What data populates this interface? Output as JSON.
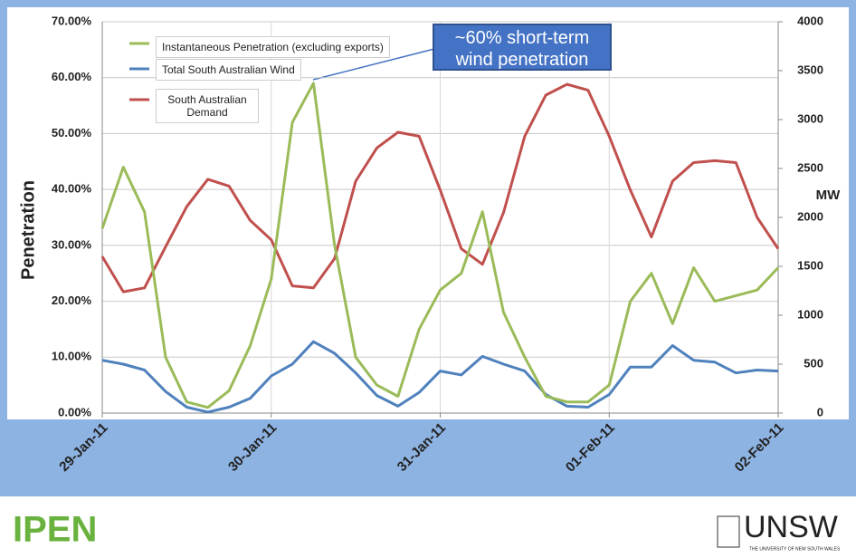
{
  "chart_data": {
    "type": "line",
    "ylabel": "Penetration",
    "y2label": "MW",
    "annotation": "~60% short-term wind penetration",
    "x": [
      0,
      0.125,
      0.25,
      0.375,
      0.5,
      0.625,
      0.75,
      0.875,
      1,
      1.125,
      1.25,
      1.375,
      1.5,
      1.625,
      1.75,
      1.875,
      2,
      2.125,
      2.25,
      2.375,
      2.5,
      2.625,
      2.75,
      2.875,
      3,
      3.125,
      3.25,
      3.375,
      3.5,
      3.625,
      3.75,
      3.875,
      4
    ],
    "xlim": [
      0,
      4
    ],
    "xticks": [
      {
        "value": 0,
        "label": "29-Jan-11"
      },
      {
        "value": 1,
        "label": "30-Jan-11"
      },
      {
        "value": 2,
        "label": "31-Jan-11"
      },
      {
        "value": 3,
        "label": "01-Feb-11"
      },
      {
        "value": 4,
        "label": "02-Feb-11"
      }
    ],
    "ylim": [
      0,
      70
    ],
    "yticks": [
      {
        "value": 0,
        "label": "0.00%"
      },
      {
        "value": 10,
        "label": "10.00%"
      },
      {
        "value": 20,
        "label": "20.00%"
      },
      {
        "value": 30,
        "label": "30.00%"
      },
      {
        "value": 40,
        "label": "40.00%"
      },
      {
        "value": 50,
        "label": "50.00%"
      },
      {
        "value": 60,
        "label": "60.00%"
      },
      {
        "value": 70,
        "label": "70.00%"
      }
    ],
    "y2lim": [
      0,
      4000
    ],
    "y2ticks": [
      0,
      500,
      1000,
      1500,
      2000,
      2500,
      3000,
      3500,
      4000
    ],
    "grid": true,
    "series": [
      {
        "name": "Instantaneous Penetration (excluding exports)",
        "color": "#9bbb59",
        "axis": "y",
        "values": [
          33,
          44,
          36,
          10,
          2,
          1,
          4,
          12,
          24,
          52,
          59,
          30,
          10,
          5,
          3,
          15,
          22,
          25,
          36,
          18,
          10,
          3,
          2,
          2,
          5,
          20,
          25,
          16,
          26,
          20,
          21,
          22,
          26
        ]
      },
      {
        "name": "Total South Australian Wind",
        "color": "#4f81bd",
        "axis": "y2",
        "values": [
          540,
          500,
          440,
          220,
          60,
          10,
          60,
          150,
          380,
          500,
          730,
          610,
          410,
          180,
          70,
          210,
          430,
          390,
          580,
          500,
          430,
          190,
          70,
          60,
          190,
          470,
          470,
          690,
          540,
          520,
          410,
          440,
          430
        ]
      },
      {
        "name": "South Australian Demand",
        "color": "#c0504d",
        "axis": "y2",
        "values": [
          1600,
          1240,
          1280,
          1700,
          2110,
          2390,
          2320,
          1970,
          1770,
          1300,
          1280,
          1580,
          2370,
          2710,
          2870,
          2830,
          2280,
          1680,
          1520,
          2050,
          2830,
          3250,
          3360,
          3300,
          2830,
          2280,
          1800,
          2370,
          2560,
          2580,
          2560,
          2000,
          1680
        ]
      }
    ]
  },
  "logos": {
    "left": "IPEN",
    "right": "UNSW",
    "right_subtitle": "THE UNIVERSITY OF NEW SOUTH WALES"
  }
}
